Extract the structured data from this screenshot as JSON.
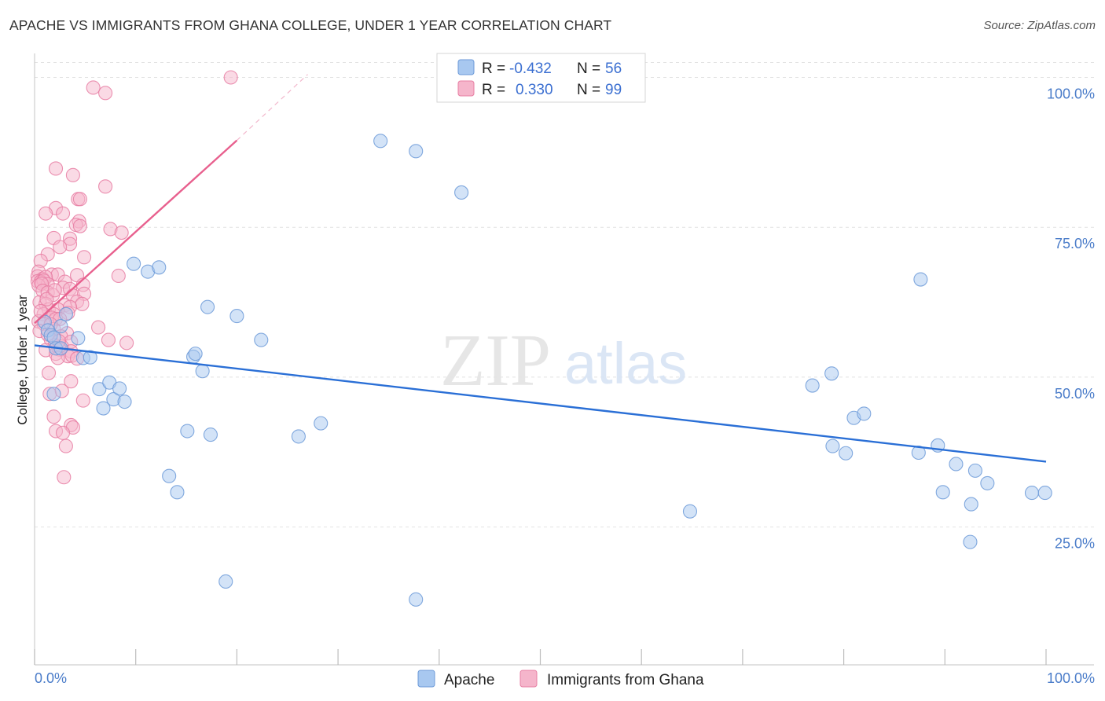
{
  "title": "APACHE VS IMMIGRANTS FROM GHANA COLLEGE, UNDER 1 YEAR CORRELATION CHART",
  "source": "Source: ZipAtlas.com",
  "watermark": {
    "zip": "ZIP",
    "atlas": "atlas"
  },
  "colors": {
    "apache_fill": "#a8c8f0",
    "apache_stroke": "#6c9ad8",
    "apache_line": "#2a6fd6",
    "ghana_fill": "#f5b5cb",
    "ghana_stroke": "#e87ea3",
    "ghana_line": "#e8608e",
    "grid": "#e2e2e2",
    "axis_label": "#4a7cc9"
  },
  "legend": {
    "apache": {
      "r_label": "R =",
      "r_value": "-0.432",
      "n_label": "N =",
      "n_value": "56"
    },
    "ghana": {
      "r_label": "R =",
      "r_value": "0.330",
      "n_label": "N =",
      "n_value": "99"
    }
  },
  "chart_data": {
    "type": "scatter",
    "xlabel": "",
    "ylabel": "College, Under 1 year",
    "xlim": [
      0,
      100
    ],
    "ylim": [
      2,
      104
    ],
    "x_tick_labels": {
      "left": "0.0%",
      "right": "100.0%"
    },
    "y_ticks": [
      {
        "value": 100,
        "label": "100.0%"
      },
      {
        "value": 75,
        "label": "75.0%"
      },
      {
        "value": 50,
        "label": "50.0%"
      },
      {
        "value": 25,
        "label": "25.0%"
      }
    ],
    "series": [
      {
        "name": "Apache",
        "trend": {
          "x": [
            0,
            100
          ],
          "y": [
            55.3,
            35.9
          ]
        },
        "points": [
          [
            1.0,
            59.2
          ],
          [
            1.3,
            57.8
          ],
          [
            1.6,
            57.0
          ],
          [
            1.9,
            56.6
          ],
          [
            2.1,
            54.8
          ],
          [
            2.6,
            54.8
          ],
          [
            2.6,
            58.5
          ],
          [
            3.1,
            60.5
          ],
          [
            1.9,
            47.2
          ],
          [
            4.3,
            56.5
          ],
          [
            4.8,
            53.2
          ],
          [
            5.5,
            53.3
          ],
          [
            6.4,
            48.0
          ],
          [
            6.8,
            44.8
          ],
          [
            7.4,
            49.1
          ],
          [
            7.8,
            46.3
          ],
          [
            8.4,
            48.1
          ],
          [
            8.9,
            45.9
          ],
          [
            9.8,
            68.9
          ],
          [
            11.2,
            67.6
          ],
          [
            12.3,
            68.3
          ],
          [
            13.3,
            33.5
          ],
          [
            14.1,
            30.8
          ],
          [
            15.1,
            41.0
          ],
          [
            15.7,
            53.4
          ],
          [
            15.9,
            53.9
          ],
          [
            16.6,
            51.0
          ],
          [
            17.1,
            61.7
          ],
          [
            17.4,
            40.4
          ],
          [
            18.9,
            15.9
          ],
          [
            20.0,
            60.2
          ],
          [
            22.4,
            56.2
          ],
          [
            26.1,
            40.1
          ],
          [
            28.3,
            42.3
          ],
          [
            34.2,
            89.4
          ],
          [
            37.7,
            87.7
          ],
          [
            37.7,
            12.9
          ],
          [
            42.2,
            80.8
          ],
          [
            64.8,
            27.6
          ],
          [
            76.9,
            48.6
          ],
          [
            78.8,
            50.6
          ],
          [
            78.9,
            38.5
          ],
          [
            80.2,
            37.3
          ],
          [
            81.0,
            43.2
          ],
          [
            82.0,
            43.9
          ],
          [
            87.6,
            66.3
          ],
          [
            87.4,
            37.4
          ],
          [
            89.3,
            38.6
          ],
          [
            89.8,
            30.8
          ],
          [
            91.1,
            35.5
          ],
          [
            92.6,
            28.8
          ],
          [
            93.0,
            34.4
          ],
          [
            94.2,
            32.3
          ],
          [
            92.5,
            22.5
          ],
          [
            98.6,
            30.7
          ],
          [
            99.9,
            30.7
          ]
        ]
      },
      {
        "name": "Immigrants from Ghana",
        "trend": {
          "x": [
            0,
            20
          ],
          "y": [
            59.0,
            89.5
          ]
        },
        "trend_extension": {
          "x": [
            20,
            27
          ],
          "y": [
            89.5,
            100.5
          ]
        },
        "points": [
          [
            19.4,
            100.0
          ],
          [
            5.8,
            98.3
          ],
          [
            7.0,
            97.4
          ],
          [
            2.1,
            84.8
          ],
          [
            3.8,
            83.7
          ],
          [
            7.0,
            81.8
          ],
          [
            4.3,
            79.7
          ],
          [
            4.5,
            79.7
          ],
          [
            2.1,
            78.2
          ],
          [
            1.1,
            77.3
          ],
          [
            2.8,
            77.3
          ],
          [
            4.4,
            76.0
          ],
          [
            4.1,
            75.4
          ],
          [
            4.5,
            75.2
          ],
          [
            7.5,
            74.7
          ],
          [
            8.6,
            74.1
          ],
          [
            1.9,
            73.2
          ],
          [
            3.5,
            73.1
          ],
          [
            3.5,
            72.2
          ],
          [
            2.5,
            71.7
          ],
          [
            1.3,
            70.5
          ],
          [
            4.9,
            70.0
          ],
          [
            0.6,
            69.4
          ],
          [
            0.4,
            67.6
          ],
          [
            1.7,
            67.1
          ],
          [
            2.3,
            67.1
          ],
          [
            4.2,
            67.0
          ],
          [
            0.3,
            66.8
          ],
          [
            0.8,
            66.4
          ],
          [
            1.1,
            66.7
          ],
          [
            0.3,
            66.0
          ],
          [
            0.6,
            65.9
          ],
          [
            0.9,
            66.1
          ],
          [
            1.3,
            65.5
          ],
          [
            0.4,
            65.3
          ],
          [
            0.7,
            65.6
          ],
          [
            3.0,
            65.9
          ],
          [
            8.3,
            66.9
          ],
          [
            2.8,
            64.9
          ],
          [
            3.5,
            64.7
          ],
          [
            4.8,
            65.4
          ],
          [
            0.8,
            64.4
          ],
          [
            1.3,
            64.1
          ],
          [
            1.8,
            63.7
          ],
          [
            3.8,
            63.6
          ],
          [
            4.9,
            63.9
          ],
          [
            0.5,
            62.5
          ],
          [
            1.1,
            62.2
          ],
          [
            3.0,
            62.0
          ],
          [
            4.2,
            62.6
          ],
          [
            4.7,
            62.2
          ],
          [
            1.4,
            61.3
          ],
          [
            2.3,
            61.3
          ],
          [
            3.5,
            61.7
          ],
          [
            0.9,
            60.5
          ],
          [
            1.9,
            60.5
          ],
          [
            3.3,
            60.7
          ],
          [
            1.7,
            59.9
          ],
          [
            2.1,
            59.7
          ],
          [
            2.5,
            59.7
          ],
          [
            0.4,
            59.3
          ],
          [
            0.9,
            58.9
          ],
          [
            1.9,
            58.0
          ],
          [
            3.2,
            57.3
          ],
          [
            6.3,
            58.3
          ],
          [
            0.5,
            57.7
          ],
          [
            1.3,
            57.1
          ],
          [
            2.6,
            56.8
          ],
          [
            1.6,
            56.3
          ],
          [
            3.6,
            55.9
          ],
          [
            7.3,
            56.2
          ],
          [
            9.1,
            55.7
          ],
          [
            2.0,
            55.3
          ],
          [
            2.7,
            55.1
          ],
          [
            1.1,
            54.5
          ],
          [
            2.5,
            54.6
          ],
          [
            3.6,
            54.3
          ],
          [
            2.1,
            53.9
          ],
          [
            3.3,
            53.5
          ],
          [
            3.7,
            53.6
          ],
          [
            2.3,
            53.2
          ],
          [
            4.2,
            53.1
          ],
          [
            1.4,
            50.7
          ],
          [
            3.6,
            49.3
          ],
          [
            1.5,
            47.2
          ],
          [
            2.7,
            47.7
          ],
          [
            4.8,
            46.1
          ],
          [
            1.9,
            43.4
          ],
          [
            3.6,
            42.0
          ],
          [
            3.8,
            41.6
          ],
          [
            2.1,
            41.0
          ],
          [
            2.8,
            40.7
          ],
          [
            3.1,
            38.5
          ],
          [
            2.9,
            33.3
          ],
          [
            1.2,
            63.0
          ],
          [
            2.0,
            64.5
          ],
          [
            0.6,
            61.0
          ],
          [
            1.6,
            58.8
          ],
          [
            2.4,
            56.0
          ]
        ]
      }
    ]
  },
  "bottom_legend": {
    "apache": "Apache",
    "ghana": "Immigrants from Ghana"
  }
}
